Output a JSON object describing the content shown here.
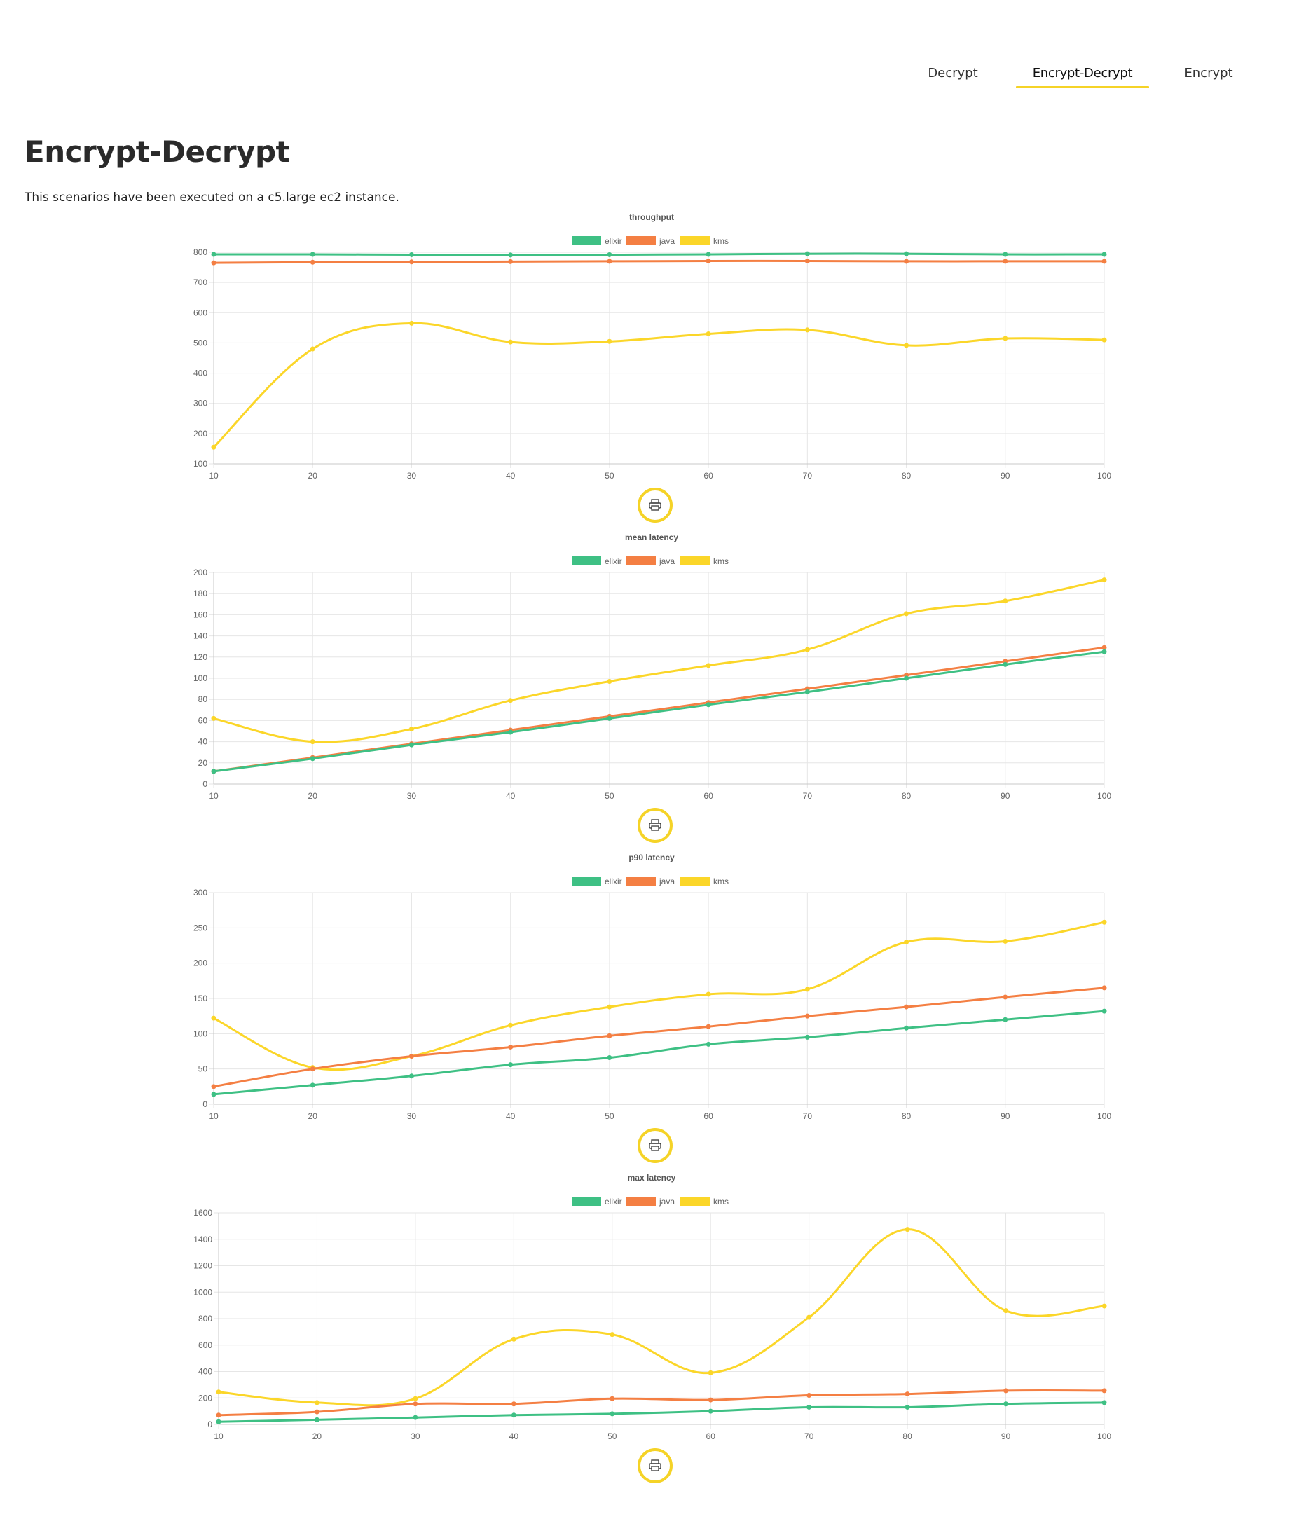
{
  "nav": {
    "tabs": [
      {
        "label": "Decrypt",
        "active": false
      },
      {
        "label": "Encrypt-Decrypt",
        "active": true
      },
      {
        "label": "Encrypt",
        "active": false
      }
    ]
  },
  "page": {
    "title": "Encrypt-Decrypt",
    "description": "This scenarios have been executed on a c5.large ec2 instance."
  },
  "colors": {
    "elixir": "#3ec084",
    "java": "#f47f43",
    "kms": "#fbd629",
    "accent": "#f5d327"
  },
  "print_icon": "printer-icon",
  "chart_data": [
    {
      "type": "line",
      "title": "throughput",
      "x": [
        10,
        20,
        30,
        40,
        50,
        60,
        70,
        80,
        90,
        100
      ],
      "ylim": [
        100,
        800
      ],
      "yticks": [
        100,
        200,
        300,
        400,
        500,
        600,
        700,
        800
      ],
      "legend": "top",
      "grid": true,
      "series": [
        {
          "name": "elixir",
          "color": "#3ec084",
          "values": [
            793,
            793,
            792,
            791,
            792,
            793,
            795,
            795,
            793,
            793
          ]
        },
        {
          "name": "java",
          "color": "#f47f43",
          "values": [
            765,
            767,
            768,
            769,
            770,
            771,
            771,
            770,
            770,
            770
          ]
        },
        {
          "name": "kms",
          "color": "#fbd629",
          "values": [
            155,
            480,
            565,
            503,
            505,
            530,
            543,
            492,
            515,
            510
          ]
        }
      ]
    },
    {
      "type": "line",
      "title": "mean latency",
      "x": [
        10,
        20,
        30,
        40,
        50,
        60,
        70,
        80,
        90,
        100
      ],
      "ylim": [
        0,
        200
      ],
      "yticks": [
        0,
        20,
        40,
        60,
        80,
        100,
        120,
        140,
        160,
        180,
        200
      ],
      "legend": "top",
      "grid": true,
      "series": [
        {
          "name": "elixir",
          "color": "#3ec084",
          "values": [
            12,
            24,
            37,
            49,
            62,
            75,
            87,
            100,
            113,
            125
          ]
        },
        {
          "name": "java",
          "color": "#f47f43",
          "values": [
            12,
            25,
            38,
            51,
            64,
            77,
            90,
            103,
            116,
            129
          ]
        },
        {
          "name": "kms",
          "color": "#fbd629",
          "values": [
            62,
            40,
            52,
            79,
            97,
            112,
            127,
            161,
            173,
            193
          ]
        }
      ]
    },
    {
      "type": "line",
      "title": "p90 latency",
      "x": [
        10,
        20,
        30,
        40,
        50,
        60,
        70,
        80,
        90,
        100
      ],
      "ylim": [
        0,
        300
      ],
      "yticks": [
        0,
        50,
        100,
        150,
        200,
        250,
        300
      ],
      "legend": "top",
      "grid": true,
      "series": [
        {
          "name": "elixir",
          "color": "#3ec084",
          "values": [
            14,
            27,
            40,
            56,
            66,
            85,
            95,
            108,
            120,
            132
          ]
        },
        {
          "name": "java",
          "color": "#f47f43",
          "values": [
            25,
            50,
            68,
            81,
            97,
            110,
            125,
            138,
            152,
            165
          ]
        },
        {
          "name": "kms",
          "color": "#fbd629",
          "values": [
            122,
            52,
            68,
            112,
            138,
            156,
            163,
            230,
            231,
            258
          ]
        }
      ]
    },
    {
      "type": "line",
      "title": "max latency",
      "x": [
        10,
        20,
        30,
        40,
        50,
        60,
        70,
        80,
        90,
        100
      ],
      "ylim": [
        0,
        1600
      ],
      "yticks": [
        0,
        200,
        400,
        600,
        800,
        1000,
        1200,
        1400,
        1600
      ],
      "legend": "top",
      "grid": true,
      "series": [
        {
          "name": "elixir",
          "color": "#3ec084",
          "values": [
            20,
            35,
            52,
            70,
            80,
            100,
            130,
            130,
            155,
            165
          ]
        },
        {
          "name": "java",
          "color": "#f47f43",
          "values": [
            70,
            95,
            155,
            155,
            195,
            185,
            220,
            230,
            255,
            255
          ]
        },
        {
          "name": "kms",
          "color": "#fbd629",
          "values": [
            245,
            165,
            195,
            645,
            680,
            390,
            810,
            1475,
            860,
            895
          ]
        }
      ]
    }
  ]
}
